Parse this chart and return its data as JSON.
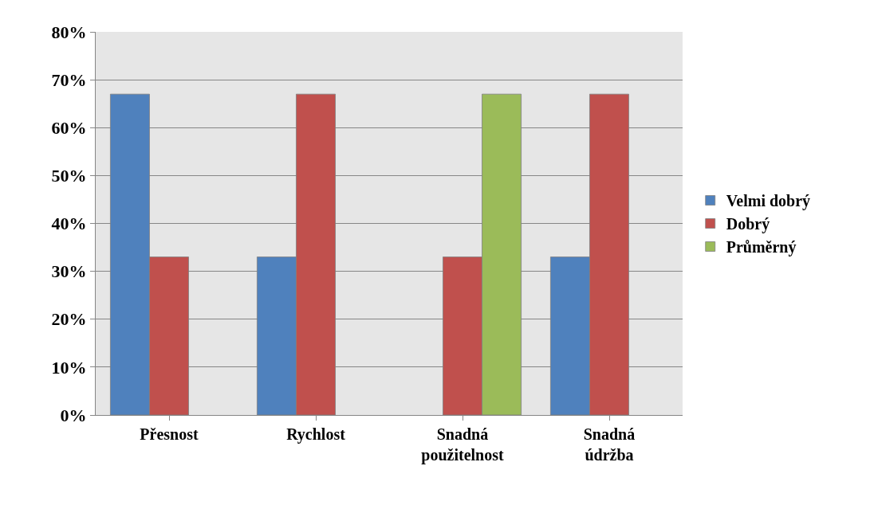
{
  "chart_data": {
    "type": "bar",
    "categories": [
      "Přesnost",
      "Rychlost",
      "Snadná použitelnost",
      "Snadná údržba"
    ],
    "series": [
      {
        "name": "Velmi dobrý",
        "color": "#4f81bd",
        "values": [
          67,
          33,
          null,
          33
        ]
      },
      {
        "name": "Dobrý",
        "color": "#c0504d",
        "values": [
          33,
          67,
          33,
          67
        ]
      },
      {
        "name": "Průměrný",
        "color": "#9bbb59",
        "values": [
          null,
          null,
          67,
          null
        ]
      }
    ],
    "ylim": [
      0,
      80
    ],
    "yticks": [
      {
        "value": 0,
        "label": "0%"
      },
      {
        "value": 10,
        "label": "10%"
      },
      {
        "value": 20,
        "label": "20%"
      },
      {
        "value": 30,
        "label": "30%"
      },
      {
        "value": 40,
        "label": "40%"
      },
      {
        "value": 50,
        "label": "50%"
      },
      {
        "value": 60,
        "label": "60%"
      },
      {
        "value": 70,
        "label": "70%"
      },
      {
        "value": 80,
        "label": "80%"
      }
    ],
    "grid": "y",
    "legend": "right"
  }
}
